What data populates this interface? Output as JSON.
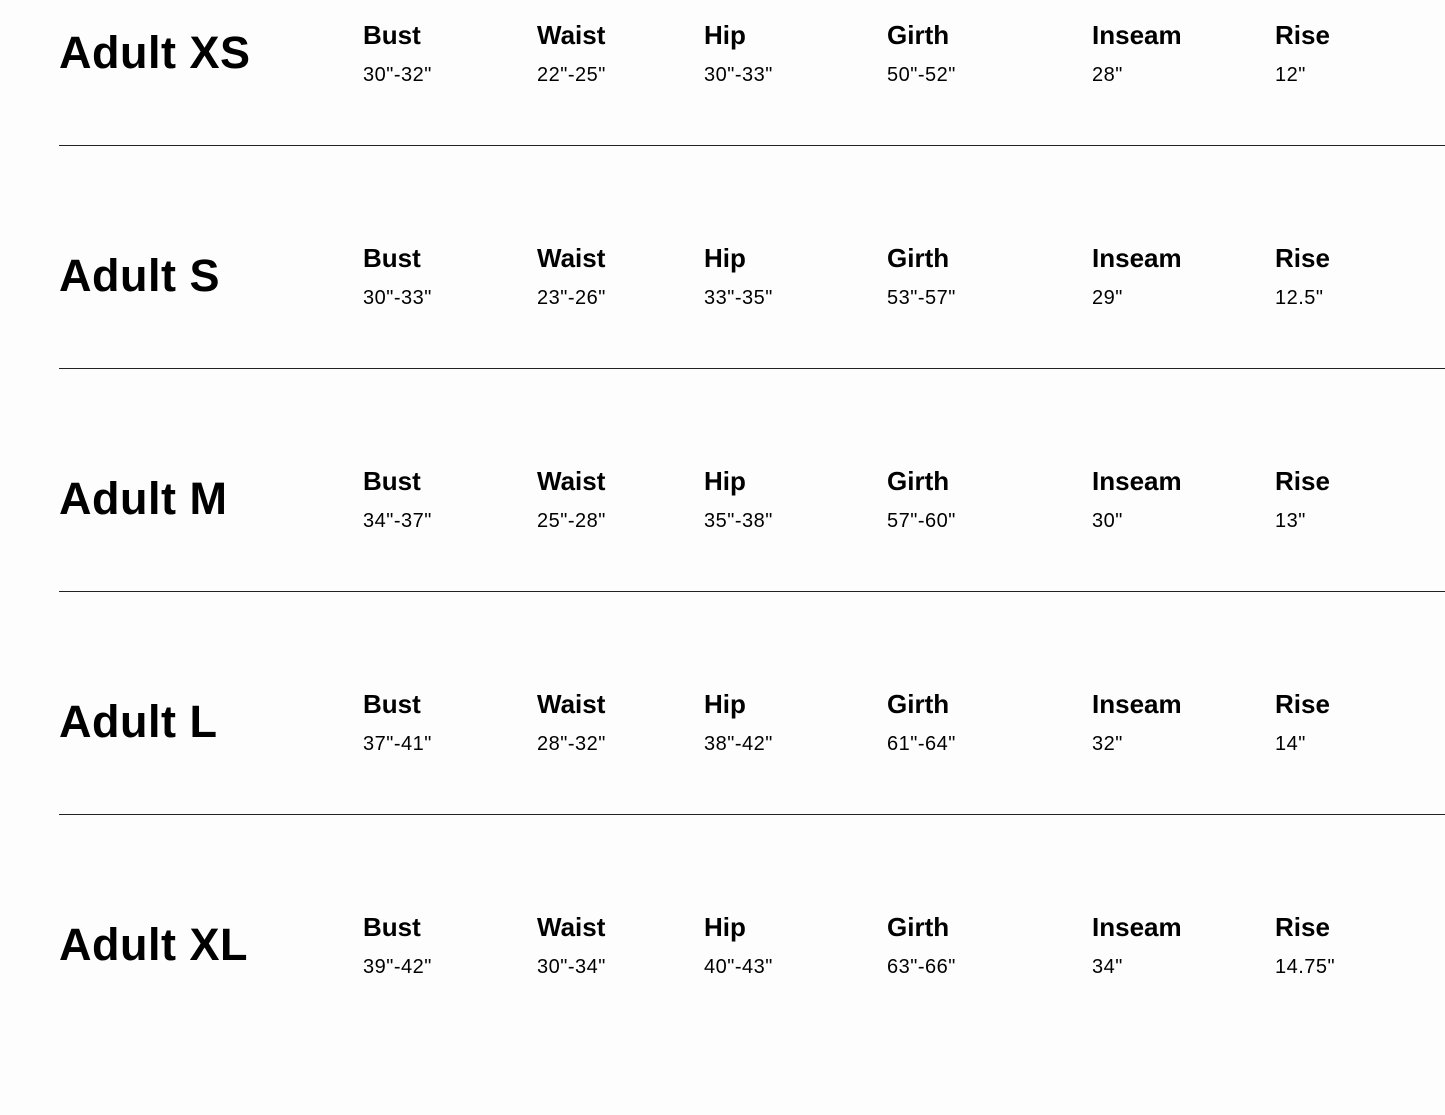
{
  "columns": [
    "Bust",
    "Waist",
    "Hip",
    "Girth",
    "Inseam",
    "Rise"
  ],
  "sizes": [
    {
      "name": "Adult XS",
      "values": [
        "30\"-32\"",
        "22\"-25\"",
        "30\"-33\"",
        "50\"-52\"",
        "28\"",
        "12\""
      ]
    },
    {
      "name": "Adult S",
      "values": [
        "30\"-33\"",
        "23\"-26\"",
        "33\"-35\"",
        "53\"-57\"",
        "29\"",
        "12.5\""
      ]
    },
    {
      "name": "Adult M",
      "values": [
        "34\"-37\"",
        "25\"-28\"",
        "35\"-38\"",
        "57\"-60\"",
        "30\"",
        "13\""
      ]
    },
    {
      "name": "Adult L",
      "values": [
        "37\"-41\"",
        "28\"-32\"",
        "38\"-42\"",
        "61\"-64\"",
        "32\"",
        "14\""
      ]
    },
    {
      "name": "Adult XL",
      "values": [
        "39\"-42\"",
        "30\"-34\"",
        "40\"-43\"",
        "63\"-66\"",
        "34\"",
        "14.75\""
      ]
    }
  ]
}
